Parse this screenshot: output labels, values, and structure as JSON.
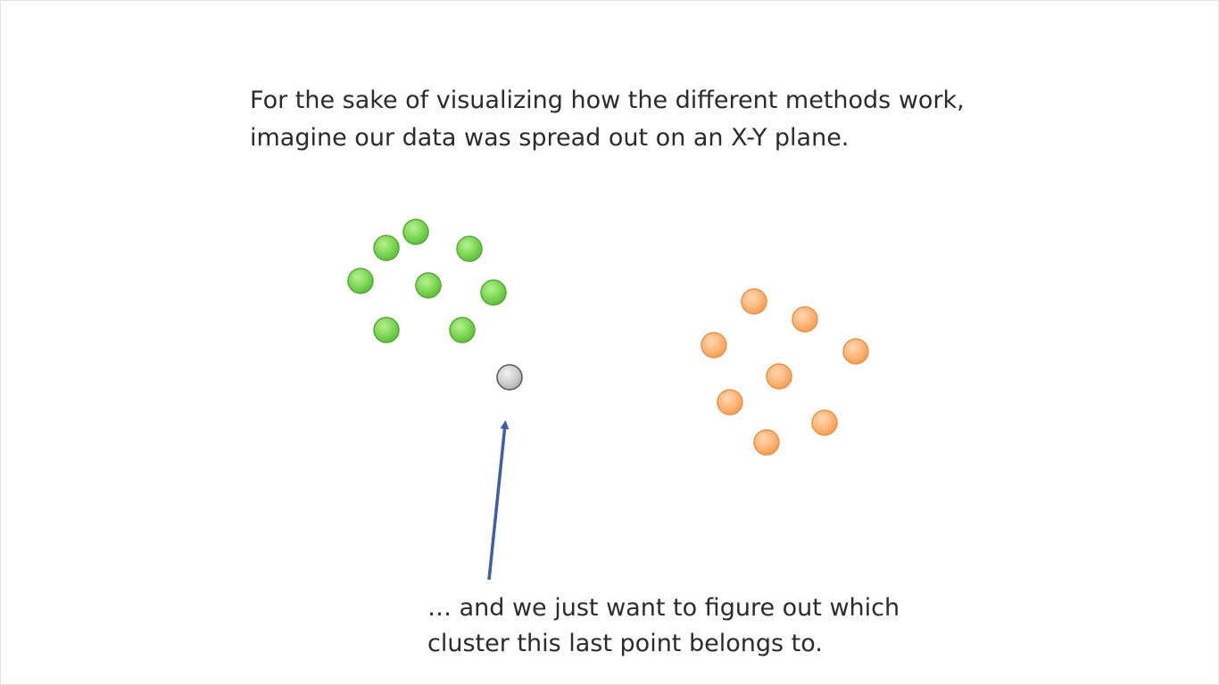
{
  "slide": {
    "heading_line1": "For the sake of visualizing how the different methods work,",
    "heading_line2": "imagine our data was spread out on an X-Y plane.",
    "caption_line1": "… and we just want to figure out which",
    "caption_line2": "cluster this last point belongs to."
  },
  "colors": {
    "green_cluster": "#7ed957",
    "orange_cluster": "#ffb77a",
    "unknown_point": "#cccccc",
    "arrow": "#3f5fa3"
  }
}
